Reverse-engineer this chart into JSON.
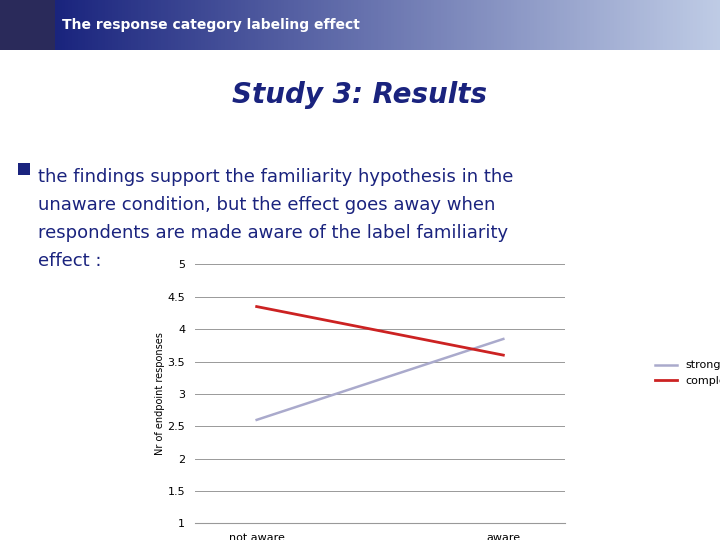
{
  "title": "Study 3: Results",
  "header": "The response category labeling effect",
  "bullet_text_line1": "the findings support the familiarity hypothesis in the",
  "bullet_text_line2": "unaware condition, but the effect goes away when",
  "bullet_text_line3": "respondents are made aware of the label familiarity",
  "bullet_text_line4": "effect :",
  "x_labels": [
    "not aware",
    "aware"
  ],
  "strongly_values": [
    2.6,
    3.85
  ],
  "completely_values": [
    4.35,
    3.6
  ],
  "ylim": [
    1,
    5
  ],
  "yticks": [
    1,
    1.5,
    2,
    2.5,
    3,
    3.5,
    4,
    4.5,
    5
  ],
  "ylabel": "Nr of endpoint responses",
  "strongly_color": "#aaaacc",
  "completely_color": "#cc2222",
  "legend_strongly": "strongly",
  "legend_completely": "completely",
  "bg_color": "#ffffff",
  "header_bg_left": "#1a237e",
  "header_bg_right": "#c5cae9",
  "header_text_color": "#ffffff",
  "title_color": "#1a237e",
  "bullet_color": "#1a237e",
  "grid_color": "#999999",
  "bullet_square_color": "#1a237e"
}
